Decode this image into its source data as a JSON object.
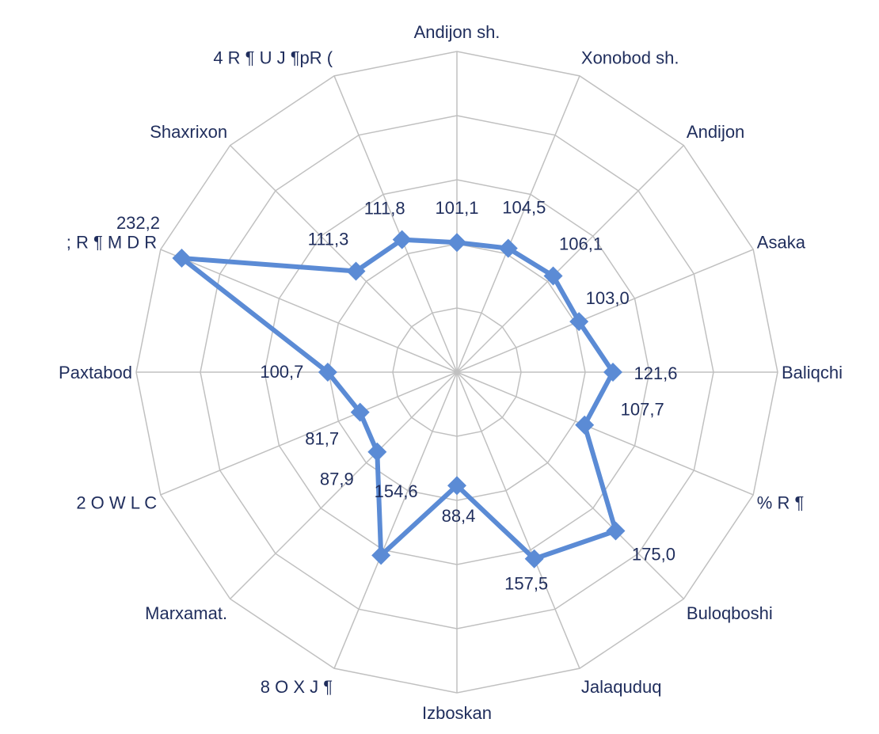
{
  "chart_data": {
    "type": "radar",
    "categories": [
      "Andijon sh.",
      "Xonobod sh.",
      "Andijon",
      "Asaka",
      "Baliqchi",
      "% R ¶",
      "Buloqboshi",
      "Jalaquduq",
      "Izboskan",
      "8 O X J ¶",
      "Marxamat.",
      "2 O W L C",
      "Paxtabod",
      "; R ¶ M D R",
      "Shaxrixon",
      "4 R ¶ U J ¶pR ("
    ],
    "values": [
      101.1,
      104.5,
      106.1,
      103.0,
      121.6,
      107.7,
      175.0,
      157.5,
      88.4,
      154.6,
      87.9,
      81.7,
      100.7,
      232.2,
      111.3,
      111.8
    ],
    "value_labels": [
      "101,1",
      "104,5",
      "106,1",
      "103,0",
      "121,6",
      "107,7",
      "175,0",
      "157,5",
      "88,4",
      "154,6",
      "87,9",
      "81,7",
      "100,7",
      "232,2",
      "111,3",
      "111,8"
    ],
    "color": "#5b8bd5",
    "ylim": [
      0,
      250
    ],
    "yticks": [
      0,
      50,
      100,
      150,
      200,
      250
    ],
    "grid": true
  }
}
